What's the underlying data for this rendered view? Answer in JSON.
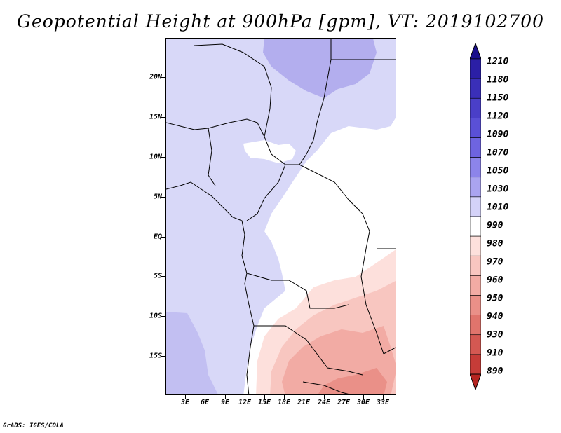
{
  "title": "Geopotential Height at 900hPa [gpm], VT: 2019102700",
  "credit": "GrADS: IGES/COLA",
  "latitude_labels": [
    "20N",
    "15N",
    "10N",
    "5N",
    "EQ",
    "5S",
    "10S",
    "15S"
  ],
  "longitude_labels": [
    "3E",
    "6E",
    "9E",
    "12E",
    "15E",
    "18E",
    "21E",
    "24E",
    "27E",
    "30E",
    "33E"
  ],
  "colorbar": {
    "levels": [
      "1210",
      "1180",
      "1150",
      "1120",
      "1090",
      "1070",
      "1050",
      "1030",
      "1010",
      "990",
      "980",
      "970",
      "960",
      "950",
      "940",
      "930",
      "910",
      "890"
    ],
    "colors": [
      "#1a0f8c",
      "#2b1fa6",
      "#3a2fb8",
      "#4a3fc8",
      "#5a50d6",
      "#6e64e0",
      "#8c84ea",
      "#aaa4f0",
      "#d4d2f8",
      "#ffffff",
      "#fde0dc",
      "#f8c6c0",
      "#f2aba4",
      "#ea9088",
      "#e0746c",
      "#d45852",
      "#c63c38",
      "#b52420"
    ]
  },
  "fill_colors": {
    "land_low": "#d8d8f8",
    "ocean": "#c2bff2",
    "north_high": "#b3aeee",
    "neutral": "#ffffff",
    "pink1": "#fde0dc",
    "pink2": "#f8c6c0",
    "pink3": "#f2aba4",
    "pink4": "#ea9088"
  }
}
